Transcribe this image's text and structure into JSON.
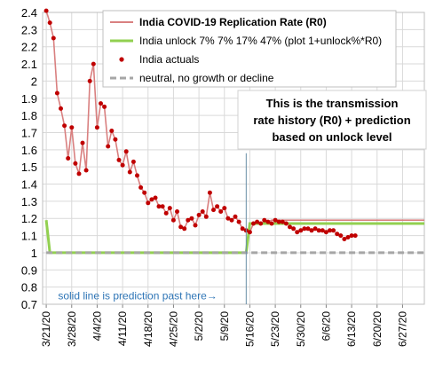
{
  "chart_data": {
    "type": "line",
    "title": "",
    "xlabel": "",
    "ylabel": "",
    "ylim": [
      0.7,
      2.4
    ],
    "y_ticks": [
      "0.7",
      "0.8",
      "0.9",
      "1",
      "1.1",
      "1.2",
      "1.3",
      "1.4",
      "1.5",
      "1.6",
      "1.7",
      "1.8",
      "1.9",
      "2",
      "2.1",
      "2.2",
      "2.3",
      "2.4"
    ],
    "x_ticks": [
      "3/21/20",
      "3/28/20",
      "4/4/20",
      "4/11/20",
      "4/18/20",
      "4/25/20",
      "5/2/20",
      "5/9/20",
      "5/16/20",
      "5/23/20",
      "5/30/20",
      "6/6/20",
      "6/13/20",
      "6/20/20",
      "6/27/20"
    ],
    "x_start": "3/21/20",
    "grid": true,
    "legend_position": "top-right",
    "series": [
      {
        "name": "India COVID-19 Replication Rate (R0)",
        "color": "#d98080",
        "dates": [
          "3/21/20",
          "3/22/20",
          "3/23/20",
          "3/24/20",
          "3/25/20",
          "3/26/20",
          "3/27/20",
          "3/28/20",
          "3/29/20",
          "3/30/20",
          "3/31/20",
          "4/1/20",
          "4/2/20",
          "4/3/20",
          "4/4/20",
          "4/5/20",
          "4/6/20",
          "4/7/20",
          "4/8/20",
          "4/9/20",
          "4/10/20",
          "4/11/20",
          "4/12/20",
          "4/13/20",
          "4/14/20",
          "4/15/20",
          "4/16/20",
          "4/17/20",
          "4/18/20",
          "4/19/20",
          "4/20/20",
          "4/21/20",
          "4/22/20",
          "4/23/20",
          "4/24/20",
          "4/25/20",
          "4/26/20",
          "4/27/20",
          "4/28/20",
          "4/29/20",
          "4/30/20",
          "5/1/20",
          "5/2/20",
          "5/3/20",
          "5/4/20",
          "5/5/20",
          "5/6/20",
          "5/7/20",
          "5/8/20",
          "5/9/20",
          "5/10/20",
          "5/11/20",
          "5/12/20",
          "5/13/20",
          "5/14/20",
          "5/15/20",
          "5/16/20",
          "5/17/20",
          "5/18/20",
          "5/19/20",
          "5/20/20",
          "5/21/20",
          "5/22/20",
          "5/23/20",
          "5/24/20",
          "5/25/20",
          "5/26/20",
          "5/27/20",
          "5/28/20",
          "5/29/20",
          "5/30/20",
          "5/31/20",
          "6/1/20",
          "6/2/20",
          "6/3/20",
          "6/4/20",
          "6/5/20",
          "6/6/20",
          "6/7/20",
          "6/8/20",
          "6/9/20",
          "6/10/20",
          "6/11/20",
          "6/12/20",
          "6/13/20",
          "6/14/20",
          "6/21/20",
          "6/28/20",
          "7/3/20"
        ],
        "values": [
          2.41,
          2.34,
          2.25,
          1.93,
          1.84,
          1.74,
          1.55,
          1.73,
          1.52,
          1.46,
          1.64,
          1.48,
          2.0,
          2.1,
          1.73,
          1.87,
          1.85,
          1.62,
          1.71,
          1.66,
          1.54,
          1.51,
          1.59,
          1.47,
          1.53,
          1.45,
          1.38,
          1.35,
          1.29,
          1.31,
          1.32,
          1.27,
          1.27,
          1.23,
          1.26,
          1.19,
          1.24,
          1.15,
          1.14,
          1.19,
          1.2,
          1.16,
          1.22,
          1.24,
          1.21,
          1.35,
          1.25,
          1.27,
          1.24,
          1.26,
          1.2,
          1.19,
          1.21,
          1.18,
          1.14,
          1.13,
          1.12,
          1.17,
          1.18,
          1.17,
          1.18,
          1.18,
          1.19,
          1.19,
          1.19,
          1.19,
          1.19,
          1.19,
          1.19,
          1.19,
          1.19,
          1.19,
          1.19,
          1.19,
          1.19,
          1.19,
          1.19,
          1.19,
          1.19,
          1.19,
          1.19,
          1.19,
          1.19,
          1.19,
          1.19,
          1.19,
          1.19,
          1.19,
          1.19
        ]
      },
      {
        "name": "India unlock  7% 7% 17% 47% (plot 1+unlock%*R0)",
        "color": "#92d050",
        "dates": [
          "3/21/20",
          "3/22/20",
          "5/15/20",
          "5/16/20",
          "5/17/20",
          "7/3/20"
        ],
        "values": [
          1.19,
          1.0,
          1.0,
          1.17,
          1.17,
          1.17
        ]
      },
      {
        "name": "India actuals",
        "color": "#c00000",
        "dates": [
          "3/21/20",
          "3/22/20",
          "3/23/20",
          "3/24/20",
          "3/25/20",
          "3/26/20",
          "3/27/20",
          "3/28/20",
          "3/29/20",
          "3/30/20",
          "3/31/20",
          "4/1/20",
          "4/2/20",
          "4/3/20",
          "4/4/20",
          "4/5/20",
          "4/6/20",
          "4/7/20",
          "4/8/20",
          "4/9/20",
          "4/10/20",
          "4/11/20",
          "4/12/20",
          "4/13/20",
          "4/14/20",
          "4/15/20",
          "4/16/20",
          "4/17/20",
          "4/18/20",
          "4/19/20",
          "4/20/20",
          "4/21/20",
          "4/22/20",
          "4/23/20",
          "4/24/20",
          "4/25/20",
          "4/26/20",
          "4/27/20",
          "4/28/20",
          "4/29/20",
          "4/30/20",
          "5/1/20",
          "5/2/20",
          "5/3/20",
          "5/4/20",
          "5/5/20",
          "5/6/20",
          "5/7/20",
          "5/8/20",
          "5/9/20",
          "5/10/20",
          "5/11/20",
          "5/12/20",
          "5/13/20",
          "5/14/20",
          "5/15/20",
          "5/16/20",
          "5/17/20",
          "5/18/20",
          "5/19/20",
          "5/20/20",
          "5/21/20",
          "5/22/20",
          "5/23/20",
          "5/24/20",
          "5/25/20",
          "5/26/20",
          "5/27/20",
          "5/28/20",
          "5/29/20",
          "5/30/20",
          "5/31/20",
          "6/1/20",
          "6/2/20",
          "6/3/20",
          "6/4/20",
          "6/5/20",
          "6/6/20",
          "6/7/20",
          "6/8/20",
          "6/9/20",
          "6/10/20",
          "6/11/20",
          "6/12/20",
          "6/13/20",
          "6/14/20"
        ],
        "values": [
          2.41,
          2.34,
          2.25,
          1.93,
          1.84,
          1.74,
          1.55,
          1.73,
          1.52,
          1.46,
          1.64,
          1.48,
          2.0,
          2.1,
          1.73,
          1.87,
          1.85,
          1.62,
          1.71,
          1.66,
          1.54,
          1.51,
          1.59,
          1.47,
          1.53,
          1.45,
          1.38,
          1.35,
          1.29,
          1.31,
          1.32,
          1.27,
          1.27,
          1.23,
          1.26,
          1.19,
          1.24,
          1.15,
          1.14,
          1.19,
          1.2,
          1.16,
          1.22,
          1.24,
          1.21,
          1.35,
          1.25,
          1.27,
          1.24,
          1.26,
          1.2,
          1.19,
          1.21,
          1.18,
          1.14,
          1.13,
          1.12,
          1.17,
          1.18,
          1.17,
          1.19,
          1.18,
          1.17,
          1.19,
          1.18,
          1.18,
          1.17,
          1.15,
          1.14,
          1.12,
          1.13,
          1.14,
          1.14,
          1.13,
          1.14,
          1.13,
          1.13,
          1.12,
          1.13,
          1.13,
          1.11,
          1.1,
          1.08,
          1.09,
          1.1,
          1.1
        ]
      },
      {
        "name": "neutral, no growth or decline",
        "color": "#a6a6a6",
        "dates": [
          "3/21/20",
          "7/3/20"
        ],
        "values": [
          1.0,
          1.0
        ]
      }
    ],
    "annotations": [
      {
        "text_lines": [
          "This is the transmission",
          "rate history (R0) + prediction",
          "based on unlock level"
        ]
      },
      {
        "text": "solid line is prediction past here→",
        "at": "5/15/20"
      }
    ]
  }
}
